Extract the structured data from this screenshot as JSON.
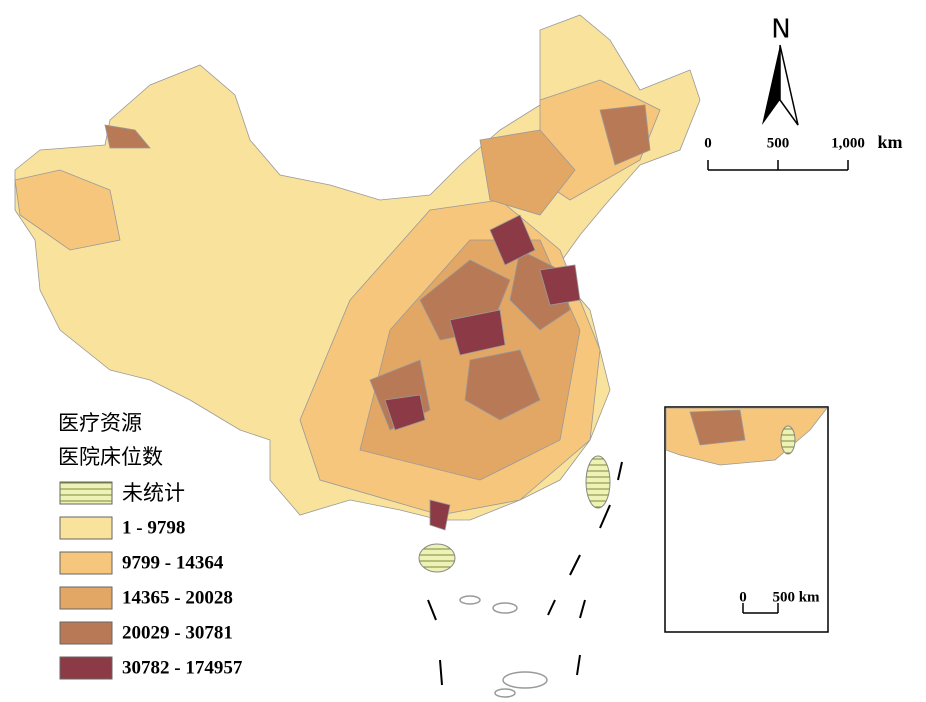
{
  "legend": {
    "title": "医疗资源",
    "subtitle": "医院床位数",
    "classes": [
      {
        "label": "未统计",
        "color": "#eef2b6",
        "hatched": true
      },
      {
        "label": "1 - 9798",
        "color": "#f9e29c"
      },
      {
        "label": "9799 - 14364",
        "color": "#f5c67c"
      },
      {
        "label": "14365 - 20028",
        "color": "#e2a765"
      },
      {
        "label": "20029 - 30781",
        "color": "#b87a56"
      },
      {
        "label": "30782 - 174957",
        "color": "#8b3a46"
      }
    ]
  },
  "north_arrow": {
    "label": "N"
  },
  "scale_bar": {
    "ticks": [
      "0",
      "500",
      "1,000"
    ],
    "unit": "km"
  },
  "inset": {
    "scale_bar": {
      "ticks": [
        "0",
        "500 km"
      ]
    }
  }
}
